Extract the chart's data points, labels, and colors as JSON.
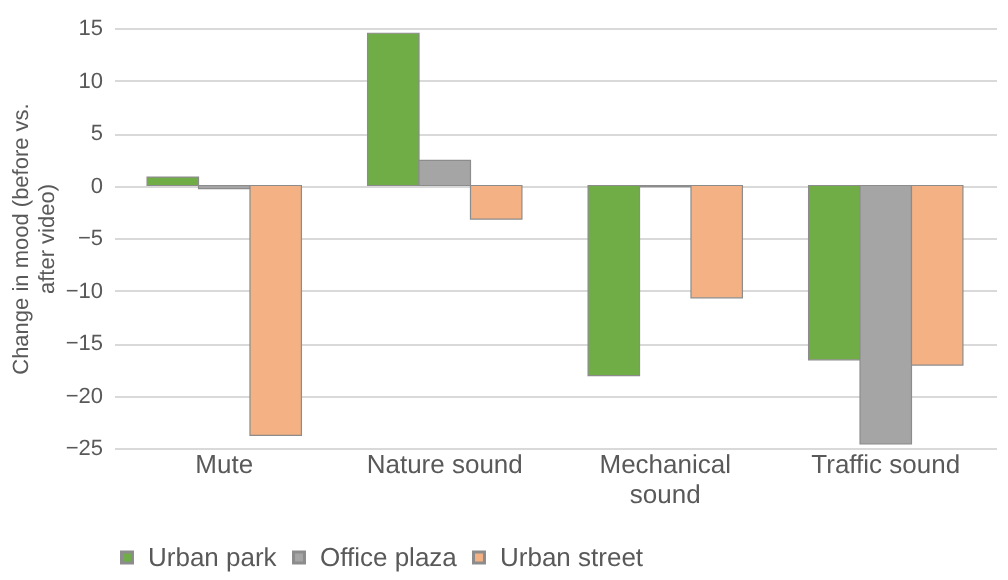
{
  "chart_data": {
    "type": "bar",
    "ylabel": "Change in mood (before vs. after video)",
    "categories": [
      "Mute",
      "Nature sound",
      "Mechanical sound",
      "Traffic sound"
    ],
    "series": [
      {
        "name": "Urban park",
        "color": "#70ad47",
        "values": [
          0.8,
          14.5,
          -18.1,
          -16.6
        ]
      },
      {
        "name": "Office plaza",
        "color": "#a5a5a5",
        "values": [
          -0.3,
          2.4,
          -0.1,
          -24.6
        ]
      },
      {
        "name": "Urban street",
        "color": "#f4b183",
        "values": [
          -23.8,
          -3.2,
          -10.7,
          -17.1
        ]
      }
    ],
    "ylim": [
      -25,
      15
    ],
    "yticks": [
      -25,
      -20,
      -15,
      -10,
      -5,
      0,
      5,
      10,
      15
    ],
    "grid": "y",
    "legend": "bottom"
  }
}
